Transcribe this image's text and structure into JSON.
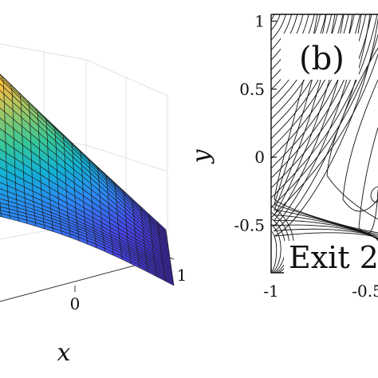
{
  "chart_data": [
    {
      "type": "surface",
      "panel": "left",
      "xlabel": "x",
      "x_ticks": [
        "0",
        "1"
      ],
      "colormap": "parula",
      "grid": true
    },
    {
      "type": "contour",
      "panel": "right",
      "panel_label": "(b)",
      "ylabel": "y",
      "xlim": [
        -1,
        -0.5
      ],
      "ylim": [
        -0.85,
        1.05
      ],
      "x_ticks": [
        "-1",
        "-0.5"
      ],
      "y_ticks": [
        "1",
        "0.5",
        "0",
        "-0.5"
      ],
      "annotations": [
        "Exit 2"
      ],
      "grid": false
    }
  ]
}
